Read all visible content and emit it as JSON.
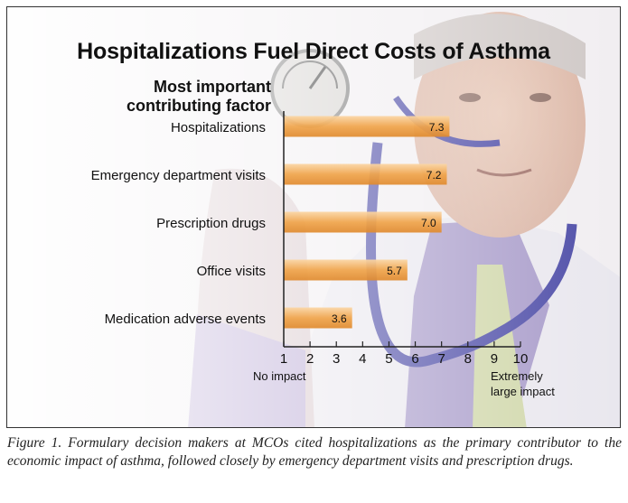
{
  "title": "Hospitalizations Fuel Direct Costs of Asthma",
  "subtitle_line1": "Most important",
  "subtitle_line2": "contributing factor",
  "chart_data": {
    "type": "bar",
    "orientation": "horizontal",
    "title": "Hospitalizations Fuel Direct Costs of Asthma",
    "categories": [
      "Hospitalizations",
      "Emergency department visits",
      "Prescription drugs",
      "Office visits",
      "Medication adverse events"
    ],
    "values": [
      7.3,
      7.2,
      7.0,
      5.7,
      3.6
    ],
    "value_labels": [
      "7.3",
      "7.2",
      "7.0",
      "5.7",
      "3.6"
    ],
    "xlim": [
      1,
      10
    ],
    "xticks": [
      "1",
      "2",
      "3",
      "4",
      "5",
      "6",
      "7",
      "8",
      "9",
      "10"
    ],
    "x_low_label": "No impact",
    "x_high_label_line1": "Extremely",
    "x_high_label_line2": "large impact",
    "bar_color": "#f0a44a",
    "grid": false
  },
  "caption": "Figure 1. Formulary decision makers at MCOs cited hospitalizations as the primary contributor to the economic impact of asthma, followed closely by emergency department visits and prescription drugs."
}
